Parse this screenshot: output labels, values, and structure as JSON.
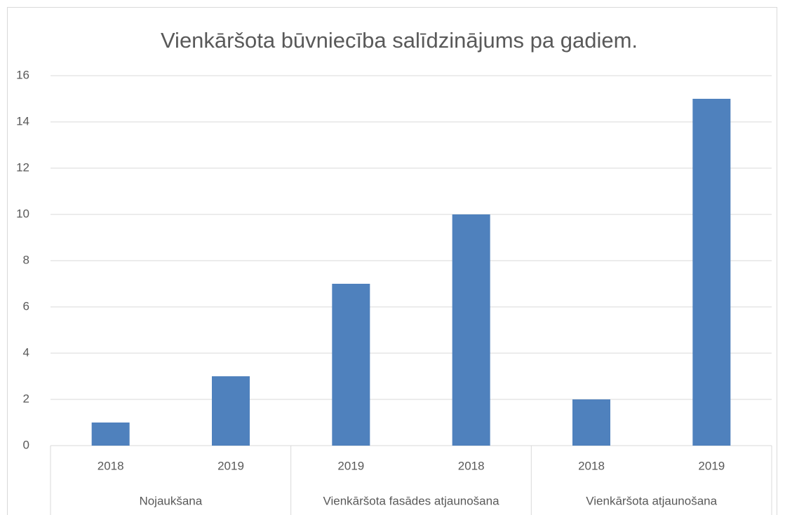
{
  "chart_data": {
    "type": "bar",
    "title": "Vienkāršota būvniecība salīdzinājums pa gadiem.",
    "groups": [
      {
        "name": "Nojaukšana",
        "categories": [
          "2018",
          "2019"
        ],
        "values": [
          1,
          3
        ]
      },
      {
        "name": "Vienkāršota fasādes atjaunošana",
        "categories": [
          "2019",
          "2018"
        ],
        "values": [
          7,
          10
        ]
      },
      {
        "name": "Vienkāršota atjaunošana",
        "categories": [
          "2018",
          "2019"
        ],
        "values": [
          2,
          15
        ]
      }
    ],
    "color": "#4f81bd",
    "ylim": [
      0,
      16
    ],
    "yticks": [
      0,
      2,
      4,
      6,
      8,
      10,
      12,
      14,
      16
    ],
    "grid": true
  }
}
